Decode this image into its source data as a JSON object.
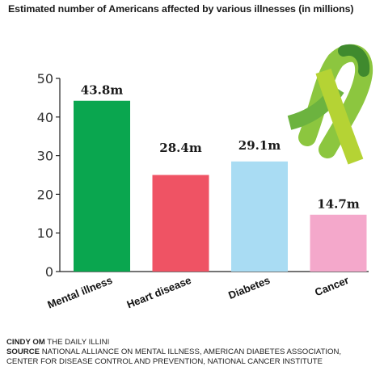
{
  "chart_data": {
    "type": "bar",
    "title": "Estimated number of Americans affected by various illnesses (in millions)",
    "categories": [
      "Mental illness",
      "Heart disease",
      "Diabetes",
      "Cancer"
    ],
    "values": [
      43.8,
      28.4,
      29.1,
      14.7
    ],
    "value_labels": [
      "43.8m",
      "28.4m",
      "29.1m",
      "14.7m"
    ],
    "bar_colors": [
      "#0aa64f",
      "#ef5364",
      "#a9dcf3",
      "#f4a8cb"
    ],
    "yticks": [
      0,
      10,
      20,
      30,
      40,
      50
    ],
    "ylim": [
      0,
      50
    ],
    "xlabel": "",
    "ylabel": "",
    "grid": false
  },
  "ribbon": {
    "icon": "awareness-ribbon-icon",
    "colors": [
      "#8cc63f",
      "#5fa53a",
      "#3f8a2e"
    ]
  },
  "credits": {
    "author_name": "CINDY OM",
    "publication": "THE DAILY ILLINI",
    "source_label": "SOURCE",
    "source_text": "NATIONAL ALLIANCE ON MENTAL ILLNESS, AMERICAN DIABETES ASSOCIATION,",
    "source_text_2": "CENTER FOR DISEASE CONTROL AND PREVENTION, NATIONAL CANCER INSTITUTE"
  }
}
